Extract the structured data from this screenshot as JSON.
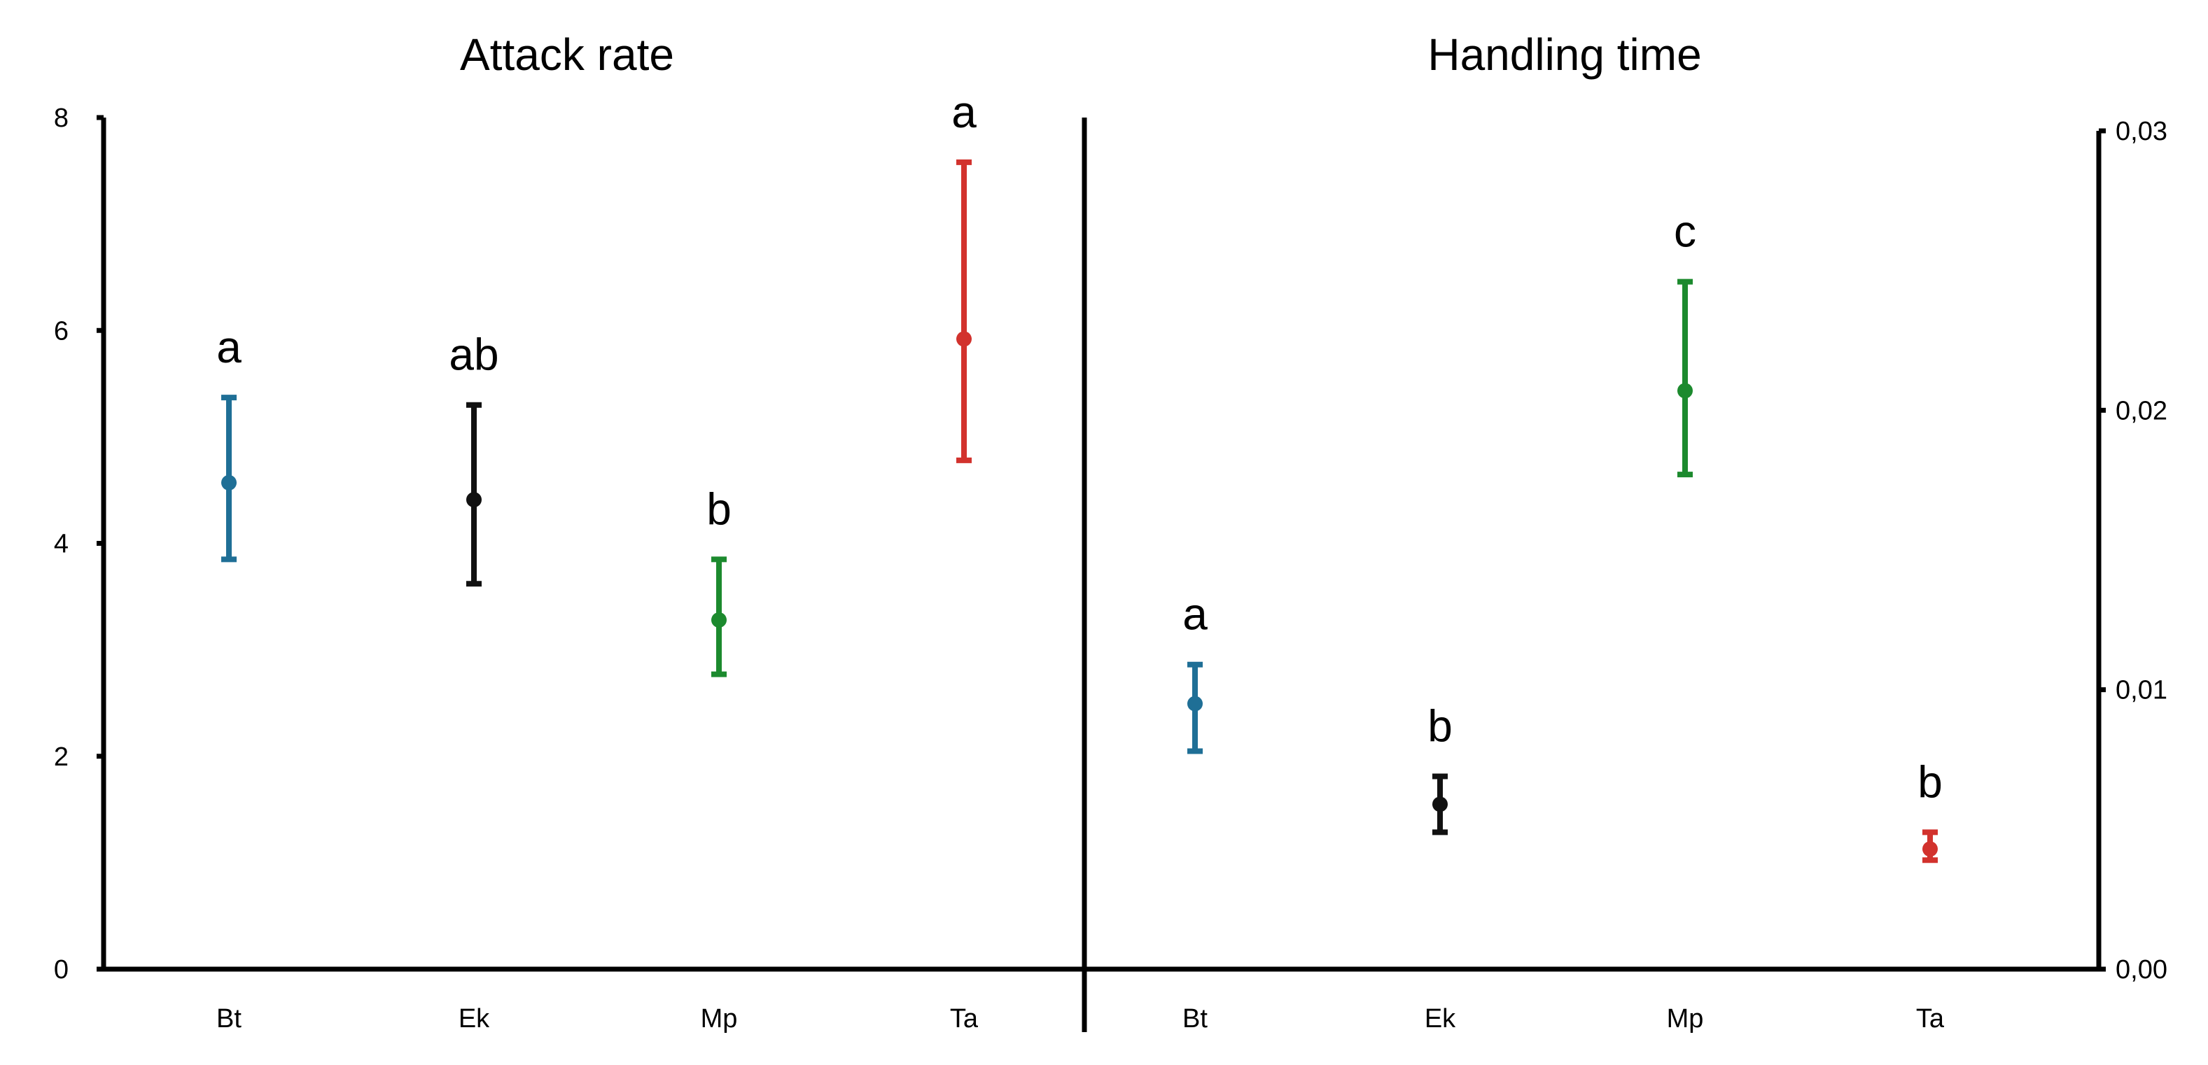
{
  "chart_data": [
    {
      "type": "scatter",
      "title": "Attack rate",
      "categories": [
        "Bt",
        "Ek",
        "Mp",
        "Ta"
      ],
      "yticks": [
        "0",
        "2",
        "4",
        "6",
        "8"
      ],
      "ylim": [
        0,
        8
      ],
      "axis_side": "left",
      "points": [
        {
          "category": "Bt",
          "value": 4.57,
          "lower": 3.85,
          "upper": 5.37,
          "letter": "a",
          "color": "#1f6f96"
        },
        {
          "category": "Ek",
          "value": 4.41,
          "lower": 3.62,
          "upper": 5.3,
          "letter": "ab",
          "color": "#111111"
        },
        {
          "category": "Mp",
          "value": 3.28,
          "lower": 2.77,
          "upper": 3.85,
          "letter": "b",
          "color": "#1c8a2e"
        },
        {
          "category": "Ta",
          "value": 5.92,
          "lower": 4.78,
          "upper": 7.58,
          "letter": "a",
          "color": "#d2322d"
        }
      ]
    },
    {
      "type": "scatter",
      "title": "Handling time",
      "categories": [
        "Bt",
        "Ek",
        "Mp",
        "Ta"
      ],
      "yticks": [
        "0,00",
        "0,01",
        "0,02",
        "0,03"
      ],
      "ylim": [
        0,
        0.03
      ],
      "axis_side": "right",
      "points": [
        {
          "category": "Bt",
          "value": 0.0095,
          "lower": 0.0078,
          "upper": 0.0109,
          "letter": "a",
          "color": "#1f6f96"
        },
        {
          "category": "Ek",
          "value": 0.0059,
          "lower": 0.0049,
          "upper": 0.0069,
          "letter": "b",
          "color": "#111111"
        },
        {
          "category": "Mp",
          "value": 0.0207,
          "lower": 0.0177,
          "upper": 0.0246,
          "letter": "c",
          "color": "#1c8a2e"
        },
        {
          "category": "Ta",
          "value": 0.0043,
          "lower": 0.0039,
          "upper": 0.0049,
          "letter": "b",
          "color": "#d2322d"
        }
      ]
    }
  ]
}
